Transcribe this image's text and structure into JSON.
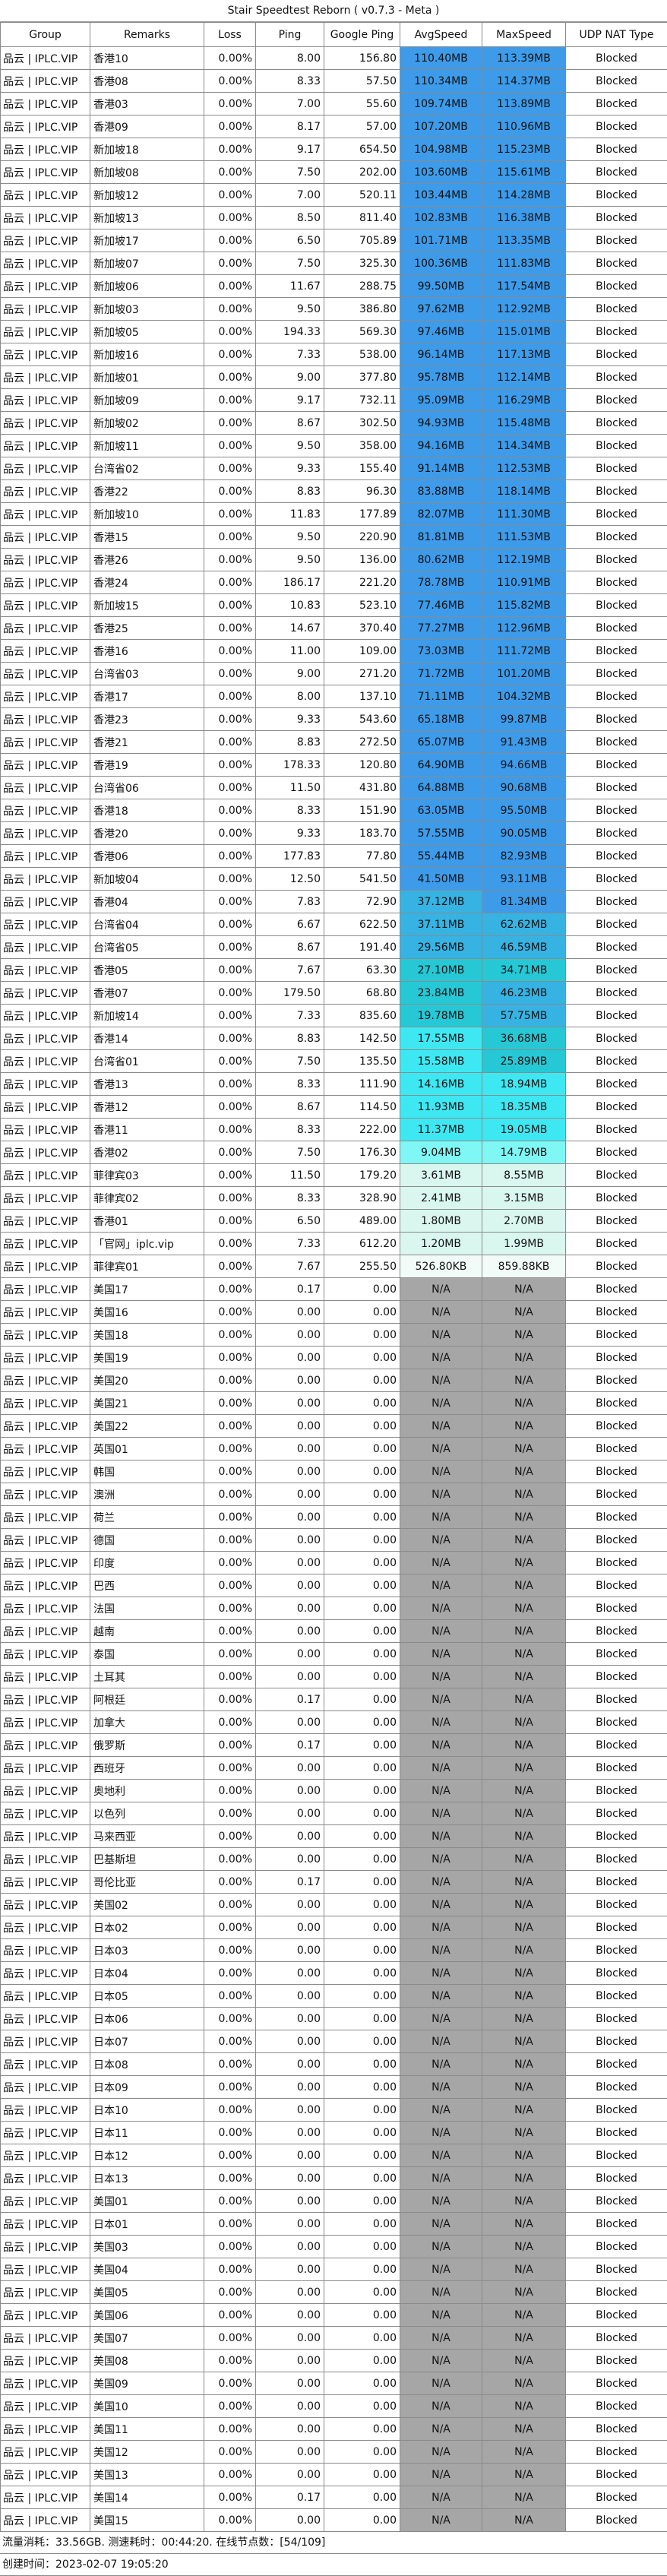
{
  "title": "Stair Speedtest Reborn ( v0.7.3 - Meta )",
  "columns": [
    "Group",
    "Remarks",
    "Loss",
    "Ping",
    "Google Ping",
    "AvgSpeed",
    "MaxSpeed",
    "UDP NAT Type"
  ],
  "colors": {
    "na": "#a6a6a6",
    "tiers": {
      "t1": "#3d9be9",
      "t2": "#36b3e2",
      "t3": "#26c8d5",
      "t4": "#3ee8f2",
      "t5": "#7ff7f5",
      "t6": "#d9f7ef",
      "t7": "#f1fbf8"
    }
  },
  "rows": [
    [
      "品云 | IPLC.VIP",
      "香港10",
      "0.00%",
      "8.00",
      "156.80",
      "110.40MB",
      "113.39MB",
      "Blocked",
      "t1",
      "t1"
    ],
    [
      "品云 | IPLC.VIP",
      "香港08",
      "0.00%",
      "8.33",
      "57.50",
      "110.34MB",
      "114.37MB",
      "Blocked",
      "t1",
      "t1"
    ],
    [
      "品云 | IPLC.VIP",
      "香港03",
      "0.00%",
      "7.00",
      "55.60",
      "109.74MB",
      "113.89MB",
      "Blocked",
      "t1",
      "t1"
    ],
    [
      "品云 | IPLC.VIP",
      "香港09",
      "0.00%",
      "8.17",
      "57.00",
      "107.20MB",
      "110.96MB",
      "Blocked",
      "t1",
      "t1"
    ],
    [
      "品云 | IPLC.VIP",
      "新加坡18",
      "0.00%",
      "9.17",
      "654.50",
      "104.98MB",
      "115.23MB",
      "Blocked",
      "t1",
      "t1"
    ],
    [
      "品云 | IPLC.VIP",
      "新加坡08",
      "0.00%",
      "7.50",
      "202.00",
      "103.60MB",
      "115.61MB",
      "Blocked",
      "t1",
      "t1"
    ],
    [
      "品云 | IPLC.VIP",
      "新加坡12",
      "0.00%",
      "7.00",
      "520.11",
      "103.44MB",
      "114.28MB",
      "Blocked",
      "t1",
      "t1"
    ],
    [
      "品云 | IPLC.VIP",
      "新加坡13",
      "0.00%",
      "8.50",
      "811.40",
      "102.83MB",
      "116.38MB",
      "Blocked",
      "t1",
      "t1"
    ],
    [
      "品云 | IPLC.VIP",
      "新加坡17",
      "0.00%",
      "6.50",
      "705.89",
      "101.71MB",
      "113.35MB",
      "Blocked",
      "t1",
      "t1"
    ],
    [
      "品云 | IPLC.VIP",
      "新加坡07",
      "0.00%",
      "7.50",
      "325.30",
      "100.36MB",
      "111.83MB",
      "Blocked",
      "t1",
      "t1"
    ],
    [
      "品云 | IPLC.VIP",
      "新加坡06",
      "0.00%",
      "11.67",
      "288.75",
      "99.50MB",
      "117.54MB",
      "Blocked",
      "t1",
      "t1"
    ],
    [
      "品云 | IPLC.VIP",
      "新加坡03",
      "0.00%",
      "9.50",
      "386.80",
      "97.62MB",
      "112.92MB",
      "Blocked",
      "t1",
      "t1"
    ],
    [
      "品云 | IPLC.VIP",
      "新加坡05",
      "0.00%",
      "194.33",
      "569.30",
      "97.46MB",
      "115.01MB",
      "Blocked",
      "t1",
      "t1"
    ],
    [
      "品云 | IPLC.VIP",
      "新加坡16",
      "0.00%",
      "7.33",
      "538.00",
      "96.14MB",
      "117.13MB",
      "Blocked",
      "t1",
      "t1"
    ],
    [
      "品云 | IPLC.VIP",
      "新加坡01",
      "0.00%",
      "9.00",
      "377.80",
      "95.78MB",
      "112.14MB",
      "Blocked",
      "t1",
      "t1"
    ],
    [
      "品云 | IPLC.VIP",
      "新加坡09",
      "0.00%",
      "9.17",
      "732.11",
      "95.09MB",
      "116.29MB",
      "Blocked",
      "t1",
      "t1"
    ],
    [
      "品云 | IPLC.VIP",
      "新加坡02",
      "0.00%",
      "8.67",
      "302.50",
      "94.93MB",
      "115.48MB",
      "Blocked",
      "t1",
      "t1"
    ],
    [
      "品云 | IPLC.VIP",
      "新加坡11",
      "0.00%",
      "9.50",
      "358.00",
      "94.16MB",
      "114.34MB",
      "Blocked",
      "t1",
      "t1"
    ],
    [
      "品云 | IPLC.VIP",
      "台湾省02",
      "0.00%",
      "9.33",
      "155.40",
      "91.14MB",
      "112.53MB",
      "Blocked",
      "t1",
      "t1"
    ],
    [
      "品云 | IPLC.VIP",
      "香港22",
      "0.00%",
      "8.83",
      "96.30",
      "83.88MB",
      "118.14MB",
      "Blocked",
      "t1",
      "t1"
    ],
    [
      "品云 | IPLC.VIP",
      "新加坡10",
      "0.00%",
      "11.83",
      "177.89",
      "82.07MB",
      "111.30MB",
      "Blocked",
      "t1",
      "t1"
    ],
    [
      "品云 | IPLC.VIP",
      "香港15",
      "0.00%",
      "9.50",
      "220.90",
      "81.81MB",
      "111.53MB",
      "Blocked",
      "t1",
      "t1"
    ],
    [
      "品云 | IPLC.VIP",
      "香港26",
      "0.00%",
      "9.50",
      "136.00",
      "80.62MB",
      "112.19MB",
      "Blocked",
      "t1",
      "t1"
    ],
    [
      "品云 | IPLC.VIP",
      "香港24",
      "0.00%",
      "186.17",
      "221.20",
      "78.78MB",
      "110.91MB",
      "Blocked",
      "t1",
      "t1"
    ],
    [
      "品云 | IPLC.VIP",
      "新加坡15",
      "0.00%",
      "10.83",
      "523.10",
      "77.46MB",
      "115.82MB",
      "Blocked",
      "t1",
      "t1"
    ],
    [
      "品云 | IPLC.VIP",
      "香港25",
      "0.00%",
      "14.67",
      "370.40",
      "77.27MB",
      "112.96MB",
      "Blocked",
      "t1",
      "t1"
    ],
    [
      "品云 | IPLC.VIP",
      "香港16",
      "0.00%",
      "11.00",
      "109.00",
      "73.03MB",
      "111.72MB",
      "Blocked",
      "t1",
      "t1"
    ],
    [
      "品云 | IPLC.VIP",
      "台湾省03",
      "0.00%",
      "9.00",
      "271.20",
      "71.72MB",
      "101.20MB",
      "Blocked",
      "t1",
      "t1"
    ],
    [
      "品云 | IPLC.VIP",
      "香港17",
      "0.00%",
      "8.00",
      "137.10",
      "71.11MB",
      "104.32MB",
      "Blocked",
      "t1",
      "t1"
    ],
    [
      "品云 | IPLC.VIP",
      "香港23",
      "0.00%",
      "9.33",
      "543.60",
      "65.18MB",
      "99.87MB",
      "Blocked",
      "t1",
      "t1"
    ],
    [
      "品云 | IPLC.VIP",
      "香港21",
      "0.00%",
      "8.83",
      "272.50",
      "65.07MB",
      "91.43MB",
      "Blocked",
      "t1",
      "t1"
    ],
    [
      "品云 | IPLC.VIP",
      "香港19",
      "0.00%",
      "178.33",
      "120.80",
      "64.90MB",
      "94.66MB",
      "Blocked",
      "t1",
      "t1"
    ],
    [
      "品云 | IPLC.VIP",
      "台湾省06",
      "0.00%",
      "11.50",
      "431.80",
      "64.88MB",
      "90.68MB",
      "Blocked",
      "t1",
      "t1"
    ],
    [
      "品云 | IPLC.VIP",
      "香港18",
      "0.00%",
      "8.33",
      "151.90",
      "63.05MB",
      "95.50MB",
      "Blocked",
      "t1",
      "t1"
    ],
    [
      "品云 | IPLC.VIP",
      "香港20",
      "0.00%",
      "9.33",
      "183.70",
      "57.55MB",
      "90.05MB",
      "Blocked",
      "t1",
      "t1"
    ],
    [
      "品云 | IPLC.VIP",
      "香港06",
      "0.00%",
      "177.83",
      "77.80",
      "55.44MB",
      "82.93MB",
      "Blocked",
      "t1",
      "t1"
    ],
    [
      "品云 | IPLC.VIP",
      "新加坡04",
      "0.00%",
      "12.50",
      "541.50",
      "41.50MB",
      "93.11MB",
      "Blocked",
      "t1",
      "t1"
    ],
    [
      "品云 | IPLC.VIP",
      "香港04",
      "0.00%",
      "7.83",
      "72.90",
      "37.12MB",
      "81.34MB",
      "Blocked",
      "t2",
      "t1"
    ],
    [
      "品云 | IPLC.VIP",
      "台湾省04",
      "0.00%",
      "6.67",
      "622.50",
      "37.11MB",
      "62.62MB",
      "Blocked",
      "t2",
      "t2"
    ],
    [
      "品云 | IPLC.VIP",
      "台湾省05",
      "0.00%",
      "8.67",
      "191.40",
      "29.56MB",
      "46.59MB",
      "Blocked",
      "t2",
      "t2"
    ],
    [
      "品云 | IPLC.VIP",
      "香港05",
      "0.00%",
      "7.67",
      "63.30",
      "27.10MB",
      "34.71MB",
      "Blocked",
      "t3",
      "t3"
    ],
    [
      "品云 | IPLC.VIP",
      "香港07",
      "0.00%",
      "179.50",
      "68.80",
      "23.84MB",
      "46.23MB",
      "Blocked",
      "t3",
      "t2"
    ],
    [
      "品云 | IPLC.VIP",
      "新加坡14",
      "0.00%",
      "7.33",
      "835.60",
      "19.78MB",
      "57.75MB",
      "Blocked",
      "t3",
      "t2"
    ],
    [
      "品云 | IPLC.VIP",
      "香港14",
      "0.00%",
      "8.83",
      "142.50",
      "17.55MB",
      "36.68MB",
      "Blocked",
      "t4",
      "t3"
    ],
    [
      "品云 | IPLC.VIP",
      "台湾省01",
      "0.00%",
      "7.50",
      "135.50",
      "15.58MB",
      "25.89MB",
      "Blocked",
      "t4",
      "t3"
    ],
    [
      "品云 | IPLC.VIP",
      "香港13",
      "0.00%",
      "8.33",
      "111.90",
      "14.16MB",
      "18.94MB",
      "Blocked",
      "t4",
      "t4"
    ],
    [
      "品云 | IPLC.VIP",
      "香港12",
      "0.00%",
      "8.67",
      "114.50",
      "11.93MB",
      "18.35MB",
      "Blocked",
      "t4",
      "t4"
    ],
    [
      "品云 | IPLC.VIP",
      "香港11",
      "0.00%",
      "8.33",
      "222.00",
      "11.37MB",
      "19.05MB",
      "Blocked",
      "t4",
      "t4"
    ],
    [
      "品云 | IPLC.VIP",
      "香港02",
      "0.00%",
      "7.50",
      "176.30",
      "9.04MB",
      "14.79MB",
      "Blocked",
      "t5",
      "t5"
    ],
    [
      "品云 | IPLC.VIP",
      "菲律宾03",
      "0.00%",
      "11.50",
      "179.20",
      "3.61MB",
      "8.55MB",
      "Blocked",
      "t6",
      "t6"
    ],
    [
      "品云 | IPLC.VIP",
      "菲律宾02",
      "0.00%",
      "8.33",
      "328.90",
      "2.41MB",
      "3.15MB",
      "Blocked",
      "t6",
      "t6"
    ],
    [
      "品云 | IPLC.VIP",
      "香港01",
      "0.00%",
      "6.50",
      "489.00",
      "1.80MB",
      "2.70MB",
      "Blocked",
      "t6",
      "t6"
    ],
    [
      "品云 | IPLC.VIP",
      "「官网」iplc.vip",
      "0.00%",
      "7.33",
      "612.20",
      "1.20MB",
      "1.99MB",
      "Blocked",
      "t6",
      "t6"
    ],
    [
      "品云 | IPLC.VIP",
      "菲律宾01",
      "0.00%",
      "7.67",
      "255.50",
      "526.80KB",
      "859.88KB",
      "Blocked",
      "t7",
      "t7"
    ],
    [
      "品云 | IPLC.VIP",
      "美国17",
      "0.00%",
      "0.17",
      "0.00",
      "N/A",
      "N/A",
      "Blocked",
      "na",
      "na"
    ],
    [
      "品云 | IPLC.VIP",
      "美国16",
      "0.00%",
      "0.00",
      "0.00",
      "N/A",
      "N/A",
      "Blocked",
      "na",
      "na"
    ],
    [
      "品云 | IPLC.VIP",
      "美国18",
      "0.00%",
      "0.00",
      "0.00",
      "N/A",
      "N/A",
      "Blocked",
      "na",
      "na"
    ],
    [
      "品云 | IPLC.VIP",
      "美国19",
      "0.00%",
      "0.00",
      "0.00",
      "N/A",
      "N/A",
      "Blocked",
      "na",
      "na"
    ],
    [
      "品云 | IPLC.VIP",
      "美国20",
      "0.00%",
      "0.00",
      "0.00",
      "N/A",
      "N/A",
      "Blocked",
      "na",
      "na"
    ],
    [
      "品云 | IPLC.VIP",
      "美国21",
      "0.00%",
      "0.00",
      "0.00",
      "N/A",
      "N/A",
      "Blocked",
      "na",
      "na"
    ],
    [
      "品云 | IPLC.VIP",
      "美国22",
      "0.00%",
      "0.00",
      "0.00",
      "N/A",
      "N/A",
      "Blocked",
      "na",
      "na"
    ],
    [
      "品云 | IPLC.VIP",
      "英国01",
      "0.00%",
      "0.00",
      "0.00",
      "N/A",
      "N/A",
      "Blocked",
      "na",
      "na"
    ],
    [
      "品云 | IPLC.VIP",
      "韩国",
      "0.00%",
      "0.00",
      "0.00",
      "N/A",
      "N/A",
      "Blocked",
      "na",
      "na"
    ],
    [
      "品云 | IPLC.VIP",
      "澳洲",
      "0.00%",
      "0.00",
      "0.00",
      "N/A",
      "N/A",
      "Blocked",
      "na",
      "na"
    ],
    [
      "品云 | IPLC.VIP",
      "荷兰",
      "0.00%",
      "0.00",
      "0.00",
      "N/A",
      "N/A",
      "Blocked",
      "na",
      "na"
    ],
    [
      "品云 | IPLC.VIP",
      "德国",
      "0.00%",
      "0.00",
      "0.00",
      "N/A",
      "N/A",
      "Blocked",
      "na",
      "na"
    ],
    [
      "品云 | IPLC.VIP",
      "印度",
      "0.00%",
      "0.00",
      "0.00",
      "N/A",
      "N/A",
      "Blocked",
      "na",
      "na"
    ],
    [
      "品云 | IPLC.VIP",
      "巴西",
      "0.00%",
      "0.00",
      "0.00",
      "N/A",
      "N/A",
      "Blocked",
      "na",
      "na"
    ],
    [
      "品云 | IPLC.VIP",
      "法国",
      "0.00%",
      "0.00",
      "0.00",
      "N/A",
      "N/A",
      "Blocked",
      "na",
      "na"
    ],
    [
      "品云 | IPLC.VIP",
      "越南",
      "0.00%",
      "0.00",
      "0.00",
      "N/A",
      "N/A",
      "Blocked",
      "na",
      "na"
    ],
    [
      "品云 | IPLC.VIP",
      "泰国",
      "0.00%",
      "0.00",
      "0.00",
      "N/A",
      "N/A",
      "Blocked",
      "na",
      "na"
    ],
    [
      "品云 | IPLC.VIP",
      "土耳其",
      "0.00%",
      "0.00",
      "0.00",
      "N/A",
      "N/A",
      "Blocked",
      "na",
      "na"
    ],
    [
      "品云 | IPLC.VIP",
      "阿根廷",
      "0.00%",
      "0.17",
      "0.00",
      "N/A",
      "N/A",
      "Blocked",
      "na",
      "na"
    ],
    [
      "品云 | IPLC.VIP",
      "加拿大",
      "0.00%",
      "0.00",
      "0.00",
      "N/A",
      "N/A",
      "Blocked",
      "na",
      "na"
    ],
    [
      "品云 | IPLC.VIP",
      "俄罗斯",
      "0.00%",
      "0.17",
      "0.00",
      "N/A",
      "N/A",
      "Blocked",
      "na",
      "na"
    ],
    [
      "品云 | IPLC.VIP",
      "西班牙",
      "0.00%",
      "0.00",
      "0.00",
      "N/A",
      "N/A",
      "Blocked",
      "na",
      "na"
    ],
    [
      "品云 | IPLC.VIP",
      "奥地利",
      "0.00%",
      "0.00",
      "0.00",
      "N/A",
      "N/A",
      "Blocked",
      "na",
      "na"
    ],
    [
      "品云 | IPLC.VIP",
      "以色列",
      "0.00%",
      "0.00",
      "0.00",
      "N/A",
      "N/A",
      "Blocked",
      "na",
      "na"
    ],
    [
      "品云 | IPLC.VIP",
      "马来西亚",
      "0.00%",
      "0.00",
      "0.00",
      "N/A",
      "N/A",
      "Blocked",
      "na",
      "na"
    ],
    [
      "品云 | IPLC.VIP",
      "巴基斯坦",
      "0.00%",
      "0.00",
      "0.00",
      "N/A",
      "N/A",
      "Blocked",
      "na",
      "na"
    ],
    [
      "品云 | IPLC.VIP",
      "哥伦比亚",
      "0.00%",
      "0.17",
      "0.00",
      "N/A",
      "N/A",
      "Blocked",
      "na",
      "na"
    ],
    [
      "品云 | IPLC.VIP",
      "美国02",
      "0.00%",
      "0.00",
      "0.00",
      "N/A",
      "N/A",
      "Blocked",
      "na",
      "na"
    ],
    [
      "品云 | IPLC.VIP",
      "日本02",
      "0.00%",
      "0.00",
      "0.00",
      "N/A",
      "N/A",
      "Blocked",
      "na",
      "na"
    ],
    [
      "品云 | IPLC.VIP",
      "日本03",
      "0.00%",
      "0.00",
      "0.00",
      "N/A",
      "N/A",
      "Blocked",
      "na",
      "na"
    ],
    [
      "品云 | IPLC.VIP",
      "日本04",
      "0.00%",
      "0.00",
      "0.00",
      "N/A",
      "N/A",
      "Blocked",
      "na",
      "na"
    ],
    [
      "品云 | IPLC.VIP",
      "日本05",
      "0.00%",
      "0.00",
      "0.00",
      "N/A",
      "N/A",
      "Blocked",
      "na",
      "na"
    ],
    [
      "品云 | IPLC.VIP",
      "日本06",
      "0.00%",
      "0.00",
      "0.00",
      "N/A",
      "N/A",
      "Blocked",
      "na",
      "na"
    ],
    [
      "品云 | IPLC.VIP",
      "日本07",
      "0.00%",
      "0.00",
      "0.00",
      "N/A",
      "N/A",
      "Blocked",
      "na",
      "na"
    ],
    [
      "品云 | IPLC.VIP",
      "日本08",
      "0.00%",
      "0.00",
      "0.00",
      "N/A",
      "N/A",
      "Blocked",
      "na",
      "na"
    ],
    [
      "品云 | IPLC.VIP",
      "日本09",
      "0.00%",
      "0.00",
      "0.00",
      "N/A",
      "N/A",
      "Blocked",
      "na",
      "na"
    ],
    [
      "品云 | IPLC.VIP",
      "日本10",
      "0.00%",
      "0.00",
      "0.00",
      "N/A",
      "N/A",
      "Blocked",
      "na",
      "na"
    ],
    [
      "品云 | IPLC.VIP",
      "日本11",
      "0.00%",
      "0.00",
      "0.00",
      "N/A",
      "N/A",
      "Blocked",
      "na",
      "na"
    ],
    [
      "品云 | IPLC.VIP",
      "日本12",
      "0.00%",
      "0.00",
      "0.00",
      "N/A",
      "N/A",
      "Blocked",
      "na",
      "na"
    ],
    [
      "品云 | IPLC.VIP",
      "日本13",
      "0.00%",
      "0.00",
      "0.00",
      "N/A",
      "N/A",
      "Blocked",
      "na",
      "na"
    ],
    [
      "品云 | IPLC.VIP",
      "美国01",
      "0.00%",
      "0.00",
      "0.00",
      "N/A",
      "N/A",
      "Blocked",
      "na",
      "na"
    ],
    [
      "品云 | IPLC.VIP",
      "日本01",
      "0.00%",
      "0.00",
      "0.00",
      "N/A",
      "N/A",
      "Blocked",
      "na",
      "na"
    ],
    [
      "品云 | IPLC.VIP",
      "美国03",
      "0.00%",
      "0.00",
      "0.00",
      "N/A",
      "N/A",
      "Blocked",
      "na",
      "na"
    ],
    [
      "品云 | IPLC.VIP",
      "美国04",
      "0.00%",
      "0.00",
      "0.00",
      "N/A",
      "N/A",
      "Blocked",
      "na",
      "na"
    ],
    [
      "品云 | IPLC.VIP",
      "美国05",
      "0.00%",
      "0.00",
      "0.00",
      "N/A",
      "N/A",
      "Blocked",
      "na",
      "na"
    ],
    [
      "品云 | IPLC.VIP",
      "美国06",
      "0.00%",
      "0.00",
      "0.00",
      "N/A",
      "N/A",
      "Blocked",
      "na",
      "na"
    ],
    [
      "品云 | IPLC.VIP",
      "美国07",
      "0.00%",
      "0.00",
      "0.00",
      "N/A",
      "N/A",
      "Blocked",
      "na",
      "na"
    ],
    [
      "品云 | IPLC.VIP",
      "美国08",
      "0.00%",
      "0.00",
      "0.00",
      "N/A",
      "N/A",
      "Blocked",
      "na",
      "na"
    ],
    [
      "品云 | IPLC.VIP",
      "美国09",
      "0.00%",
      "0.00",
      "0.00",
      "N/A",
      "N/A",
      "Blocked",
      "na",
      "na"
    ],
    [
      "品云 | IPLC.VIP",
      "美国10",
      "0.00%",
      "0.00",
      "0.00",
      "N/A",
      "N/A",
      "Blocked",
      "na",
      "na"
    ],
    [
      "品云 | IPLC.VIP",
      "美国11",
      "0.00%",
      "0.00",
      "0.00",
      "N/A",
      "N/A",
      "Blocked",
      "na",
      "na"
    ],
    [
      "品云 | IPLC.VIP",
      "美国12",
      "0.00%",
      "0.00",
      "0.00",
      "N/A",
      "N/A",
      "Blocked",
      "na",
      "na"
    ],
    [
      "品云 | IPLC.VIP",
      "美国13",
      "0.00%",
      "0.00",
      "0.00",
      "N/A",
      "N/A",
      "Blocked",
      "na",
      "na"
    ],
    [
      "品云 | IPLC.VIP",
      "美国14",
      "0.00%",
      "0.17",
      "0.00",
      "N/A",
      "N/A",
      "Blocked",
      "na",
      "na"
    ],
    [
      "品云 | IPLC.VIP",
      "美国15",
      "0.00%",
      "0.00",
      "0.00",
      "N/A",
      "N/A",
      "Blocked",
      "na",
      "na"
    ]
  ],
  "footer": {
    "summary": "流量消耗：33.56GB. 测速耗时：00:44:20. 在线节点数：[54/109]",
    "created": "创建时间：2023-02-07 19:05:20"
  }
}
